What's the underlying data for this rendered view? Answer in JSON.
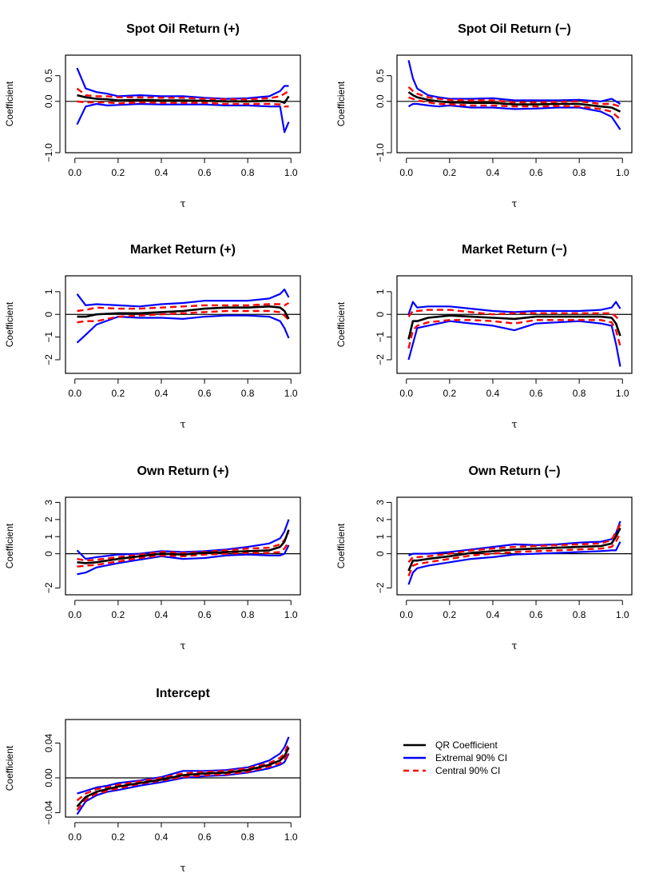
{
  "legend": {
    "entries": [
      {
        "label": "QR Coefficient",
        "color": "#000000",
        "style": "solid"
      },
      {
        "label": "Extremal 90% CI",
        "color": "#0000FF",
        "style": "solid"
      },
      {
        "label": "Central 90% CI",
        "color": "#FF0000",
        "style": "dashed"
      }
    ]
  },
  "chart_data": [
    {
      "type": "line",
      "title": "Spot Oil Return (+)",
      "xlabel": "τ",
      "ylabel": "Coefficient",
      "xlim": [
        0,
        1
      ],
      "ylim": [
        -1.0,
        0.9
      ],
      "xticks": [
        0.0,
        0.2,
        0.4,
        0.6,
        0.8,
        1.0
      ],
      "xtick_labels": [
        "0.0",
        "0.2",
        "0.4",
        "0.6",
        "0.8",
        "1.0"
      ],
      "yticks": [
        -1.0,
        0.0,
        0.5
      ],
      "ytick_labels": [
        "−1.0",
        "0.0",
        "0.5"
      ],
      "hline": 0,
      "x": [
        0.01,
        0.05,
        0.1,
        0.15,
        0.2,
        0.3,
        0.4,
        0.5,
        0.6,
        0.7,
        0.8,
        0.9,
        0.95,
        0.97,
        0.99
      ],
      "series": [
        {
          "name": "QR Coefficient",
          "values": [
            0.12,
            0.08,
            0.05,
            0.04,
            0.02,
            0.03,
            0.02,
            0.02,
            0.01,
            0.0,
            0.0,
            0.01,
            0.0,
            -0.03,
            0.1
          ]
        },
        {
          "name": "Extremal 90% CI upper",
          "values": [
            0.65,
            0.25,
            0.18,
            0.15,
            0.1,
            0.12,
            0.1,
            0.1,
            0.07,
            0.05,
            0.06,
            0.1,
            0.2,
            0.3,
            0.3
          ]
        },
        {
          "name": "Extremal 90% CI lower",
          "values": [
            -0.45,
            -0.1,
            -0.05,
            -0.08,
            -0.07,
            -0.05,
            -0.06,
            -0.06,
            -0.06,
            -0.08,
            -0.08,
            -0.1,
            -0.1,
            -0.6,
            -0.4
          ]
        },
        {
          "name": "Central 90% CI upper",
          "values": [
            0.25,
            0.12,
            0.1,
            0.1,
            0.08,
            0.08,
            0.07,
            0.07,
            0.05,
            0.04,
            0.04,
            0.06,
            0.1,
            0.15,
            0.2
          ]
        },
        {
          "name": "Central 90% CI lower",
          "values": [
            0.0,
            -0.02,
            -0.02,
            -0.02,
            -0.04,
            -0.02,
            -0.03,
            -0.03,
            -0.03,
            -0.05,
            -0.05,
            -0.05,
            -0.06,
            -0.1,
            -0.1
          ]
        }
      ]
    },
    {
      "type": "line",
      "title": "Spot Oil Return (−)",
      "xlabel": "τ",
      "ylabel": "Coefficient",
      "xlim": [
        0,
        1
      ],
      "ylim": [
        -1.0,
        0.9
      ],
      "xticks": [
        0.0,
        0.2,
        0.4,
        0.6,
        0.8,
        1.0
      ],
      "xtick_labels": [
        "0.0",
        "0.2",
        "0.4",
        "0.6",
        "0.8",
        "1.0"
      ],
      "yticks": [
        -1.0,
        0.0,
        0.5
      ],
      "ytick_labels": [
        "−1.0",
        "0.0",
        "0.5"
      ],
      "hline": 0,
      "x": [
        0.01,
        0.03,
        0.05,
        0.1,
        0.15,
        0.2,
        0.3,
        0.4,
        0.5,
        0.6,
        0.7,
        0.8,
        0.9,
        0.95,
        0.99
      ],
      "series": [
        {
          "name": "QR Coefficient",
          "values": [
            0.18,
            0.12,
            0.08,
            0.03,
            0.0,
            -0.02,
            -0.03,
            -0.03,
            -0.06,
            -0.06,
            -0.05,
            -0.05,
            -0.1,
            -0.12,
            -0.2
          ]
        },
        {
          "name": "Extremal 90% CI upper",
          "values": [
            0.8,
            0.45,
            0.25,
            0.12,
            0.08,
            0.05,
            0.05,
            0.06,
            0.02,
            0.02,
            0.02,
            0.03,
            0.0,
            0.05,
            -0.05
          ]
        },
        {
          "name": "Extremal 90% CI lower",
          "values": [
            -0.1,
            -0.05,
            -0.05,
            -0.08,
            -0.1,
            -0.08,
            -0.12,
            -0.12,
            -0.15,
            -0.14,
            -0.12,
            -0.12,
            -0.2,
            -0.3,
            -0.55
          ]
        },
        {
          "name": "Central 90% CI upper",
          "values": [
            0.28,
            0.2,
            0.15,
            0.08,
            0.05,
            0.03,
            0.02,
            0.02,
            -0.02,
            -0.02,
            -0.01,
            0.0,
            -0.05,
            -0.05,
            -0.1
          ]
        },
        {
          "name": "Central 90% CI lower",
          "values": [
            0.08,
            0.05,
            0.02,
            -0.02,
            -0.05,
            -0.06,
            -0.08,
            -0.08,
            -0.1,
            -0.1,
            -0.09,
            -0.1,
            -0.15,
            -0.2,
            -0.35
          ]
        }
      ]
    },
    {
      "type": "line",
      "title": "Market Return (+)",
      "xlabel": "τ",
      "ylabel": "Coefficient",
      "xlim": [
        0,
        1
      ],
      "ylim": [
        -2.6,
        1.7
      ],
      "xticks": [
        0.0,
        0.2,
        0.4,
        0.6,
        0.8,
        1.0
      ],
      "xtick_labels": [
        "0.0",
        "0.2",
        "0.4",
        "0.6",
        "0.8",
        "1.0"
      ],
      "yticks": [
        -2,
        -1,
        0,
        1
      ],
      "ytick_labels": [
        "−2",
        "−1",
        "0",
        "1"
      ],
      "hline": 0,
      "x": [
        0.01,
        0.05,
        0.1,
        0.2,
        0.3,
        0.4,
        0.5,
        0.6,
        0.7,
        0.8,
        0.9,
        0.95,
        0.97,
        0.99
      ],
      "series": [
        {
          "name": "QR Coefficient",
          "values": [
            -0.1,
            -0.1,
            0.0,
            0.05,
            0.05,
            0.1,
            0.15,
            0.25,
            0.3,
            0.3,
            0.35,
            0.3,
            0.15,
            -0.2
          ]
        },
        {
          "name": "Extremal 90% CI upper",
          "values": [
            0.9,
            0.4,
            0.45,
            0.4,
            0.35,
            0.45,
            0.5,
            0.6,
            0.6,
            0.6,
            0.7,
            0.9,
            1.1,
            0.75
          ]
        },
        {
          "name": "Extremal 90% CI lower",
          "values": [
            -1.25,
            -0.9,
            -0.45,
            -0.1,
            -0.15,
            -0.15,
            -0.2,
            -0.1,
            -0.05,
            -0.05,
            -0.1,
            -0.3,
            -0.6,
            -1.05
          ]
        },
        {
          "name": "Central 90% CI upper",
          "values": [
            0.15,
            0.2,
            0.3,
            0.25,
            0.25,
            0.3,
            0.35,
            0.4,
            0.4,
            0.4,
            0.45,
            0.45,
            0.4,
            0.5
          ]
        },
        {
          "name": "Central 90% CI lower",
          "values": [
            -0.35,
            -0.3,
            -0.3,
            -0.1,
            -0.05,
            0.0,
            0.05,
            0.1,
            0.15,
            0.15,
            0.15,
            0.1,
            -0.05,
            -0.25
          ]
        }
      ]
    },
    {
      "type": "line",
      "title": "Market Return (−)",
      "xlabel": "τ",
      "ylabel": "Coefficient",
      "xlim": [
        0,
        1
      ],
      "ylim": [
        -2.6,
        1.7
      ],
      "xticks": [
        0.0,
        0.2,
        0.4,
        0.6,
        0.8,
        1.0
      ],
      "xtick_labels": [
        "0.0",
        "0.2",
        "0.4",
        "0.6",
        "0.8",
        "1.0"
      ],
      "yticks": [
        -2,
        -1,
        0,
        1
      ],
      "ytick_labels": [
        "−2",
        "−1",
        "0",
        "1"
      ],
      "hline": 0,
      "x": [
        0.01,
        0.03,
        0.05,
        0.1,
        0.2,
        0.3,
        0.4,
        0.5,
        0.6,
        0.7,
        0.8,
        0.9,
        0.95,
        0.97,
        0.99
      ],
      "series": [
        {
          "name": "QR Coefficient",
          "values": [
            -1.1,
            -0.3,
            -0.3,
            -0.15,
            -0.05,
            -0.1,
            -0.15,
            -0.2,
            -0.1,
            -0.1,
            -0.1,
            -0.1,
            -0.15,
            -0.4,
            -0.95
          ]
        },
        {
          "name": "Extremal 90% CI upper",
          "values": [
            0.0,
            0.55,
            0.3,
            0.35,
            0.35,
            0.25,
            0.15,
            0.1,
            0.15,
            0.15,
            0.15,
            0.2,
            0.3,
            0.55,
            0.25
          ]
        },
        {
          "name": "Extremal 90% CI lower",
          "values": [
            -2.0,
            -1.3,
            -0.6,
            -0.5,
            -0.3,
            -0.4,
            -0.5,
            -0.7,
            -0.4,
            -0.35,
            -0.3,
            -0.4,
            -0.5,
            -1.3,
            -2.3
          ]
        },
        {
          "name": "Central 90% CI upper",
          "values": [
            -0.1,
            0.15,
            0.15,
            0.2,
            0.2,
            0.1,
            0.0,
            0.05,
            0.05,
            0.05,
            0.05,
            0.05,
            0.05,
            -0.1,
            -0.3
          ]
        },
        {
          "name": "Central 90% CI lower",
          "values": [
            -1.5,
            -0.7,
            -0.5,
            -0.35,
            -0.25,
            -0.25,
            -0.3,
            -0.4,
            -0.25,
            -0.25,
            -0.25,
            -0.25,
            -0.35,
            -0.7,
            -1.4
          ]
        }
      ]
    },
    {
      "type": "line",
      "title": "Own Return (+)",
      "xlabel": "τ",
      "ylabel": "Coefficient",
      "xlim": [
        0,
        1
      ],
      "ylim": [
        -2.4,
        3.3
      ],
      "xticks": [
        0.0,
        0.2,
        0.4,
        0.6,
        0.8,
        1.0
      ],
      "xtick_labels": [
        "0.0",
        "0.2",
        "0.4",
        "0.6",
        "0.8",
        "1.0"
      ],
      "yticks": [
        -2,
        0,
        1,
        2,
        3
      ],
      "ytick_labels": [
        "−2",
        "0",
        "1",
        "2",
        "3"
      ],
      "hline": 0,
      "x": [
        0.01,
        0.05,
        0.1,
        0.2,
        0.3,
        0.4,
        0.5,
        0.6,
        0.7,
        0.8,
        0.9,
        0.95,
        0.97,
        0.99
      ],
      "series": [
        {
          "name": "QR Coefficient",
          "values": [
            -0.5,
            -0.55,
            -0.5,
            -0.3,
            -0.15,
            0.0,
            -0.05,
            0.05,
            0.1,
            0.15,
            0.2,
            0.4,
            0.7,
            1.4
          ]
        },
        {
          "name": "Extremal 90% CI upper",
          "values": [
            0.2,
            -0.3,
            -0.2,
            -0.05,
            0.0,
            0.15,
            0.1,
            0.15,
            0.25,
            0.4,
            0.6,
            0.9,
            1.3,
            2.0
          ]
        },
        {
          "name": "Extremal 90% CI lower",
          "values": [
            -1.2,
            -1.1,
            -0.8,
            -0.55,
            -0.35,
            -0.15,
            -0.3,
            -0.25,
            -0.1,
            -0.05,
            -0.1,
            -0.1,
            0.0,
            0.5
          ]
        },
        {
          "name": "Central 90% CI upper",
          "values": [
            -0.3,
            -0.4,
            -0.35,
            -0.2,
            -0.05,
            0.1,
            0.05,
            0.1,
            0.2,
            0.3,
            0.35,
            0.55,
            0.8,
            1.2
          ]
        },
        {
          "name": "Central 90% CI lower",
          "values": [
            -0.75,
            -0.7,
            -0.65,
            -0.45,
            -0.25,
            -0.1,
            -0.15,
            -0.05,
            0.0,
            0.05,
            0.05,
            0.1,
            0.3,
            0.7
          ]
        }
      ]
    },
    {
      "type": "line",
      "title": "Own Return (−)",
      "xlabel": "τ",
      "ylabel": "Coefficient",
      "xlim": [
        0,
        1
      ],
      "ylim": [
        -2.4,
        3.3
      ],
      "xticks": [
        0.0,
        0.2,
        0.4,
        0.6,
        0.8,
        1.0
      ],
      "xtick_labels": [
        "0.0",
        "0.2",
        "0.4",
        "0.6",
        "0.8",
        "1.0"
      ],
      "yticks": [
        -2,
        0,
        1,
        2,
        3
      ],
      "ytick_labels": [
        "−2",
        "0",
        "1",
        "2",
        "3"
      ],
      "hline": 0,
      "x": [
        0.01,
        0.03,
        0.05,
        0.1,
        0.2,
        0.3,
        0.4,
        0.5,
        0.6,
        0.7,
        0.8,
        0.9,
        0.95,
        0.97,
        0.99
      ],
      "series": [
        {
          "name": "QR Coefficient",
          "values": [
            -1.0,
            -0.4,
            -0.4,
            -0.3,
            -0.15,
            0.05,
            0.15,
            0.25,
            0.3,
            0.35,
            0.4,
            0.45,
            0.6,
            1.0,
            1.5
          ]
        },
        {
          "name": "Extremal 90% CI upper",
          "values": [
            -0.1,
            0.0,
            0.0,
            0.0,
            0.1,
            0.25,
            0.4,
            0.55,
            0.5,
            0.55,
            0.65,
            0.7,
            0.85,
            1.2,
            1.9
          ]
        },
        {
          "name": "Extremal 90% CI lower",
          "values": [
            -1.8,
            -1.1,
            -0.85,
            -0.7,
            -0.5,
            -0.3,
            -0.2,
            -0.05,
            0.0,
            0.05,
            0.1,
            0.15,
            0.2,
            0.2,
            0.7
          ]
        },
        {
          "name": "Central 90% CI upper",
          "values": [
            -0.5,
            -0.2,
            -0.2,
            -0.15,
            0.0,
            0.2,
            0.3,
            0.4,
            0.45,
            0.5,
            0.55,
            0.6,
            0.8,
            1.3,
            1.7
          ]
        },
        {
          "name": "Central 90% CI lower",
          "values": [
            -1.3,
            -0.7,
            -0.6,
            -0.5,
            -0.3,
            -0.1,
            0.0,
            0.1,
            0.15,
            0.2,
            0.25,
            0.3,
            0.4,
            0.7,
            1.2
          ]
        }
      ]
    },
    {
      "type": "line",
      "title": "Intercept",
      "xlabel": "τ",
      "ylabel": "Coefficient",
      "xlim": [
        0,
        1
      ],
      "ylim": [
        -0.045,
        0.067
      ],
      "xticks": [
        0.0,
        0.2,
        0.4,
        0.6,
        0.8,
        1.0
      ],
      "xtick_labels": [
        "0.0",
        "0.2",
        "0.4",
        "0.6",
        "0.8",
        "1.0"
      ],
      "yticks": [
        -0.04,
        0.0,
        0.04
      ],
      "ytick_labels": [
        "−0.04",
        "0.00",
        "0.04"
      ],
      "hline": 0,
      "x": [
        0.01,
        0.05,
        0.1,
        0.15,
        0.2,
        0.3,
        0.4,
        0.5,
        0.6,
        0.7,
        0.8,
        0.9,
        0.95,
        0.97,
        0.99
      ],
      "series": [
        {
          "name": "QR Coefficient",
          "values": [
            -0.033,
            -0.022,
            -0.016,
            -0.013,
            -0.01,
            -0.006,
            -0.002,
            0.003,
            0.005,
            0.006,
            0.009,
            0.015,
            0.02,
            0.025,
            0.035
          ]
        },
        {
          "name": "Extremal 90% CI upper",
          "values": [
            -0.018,
            -0.015,
            -0.011,
            -0.009,
            -0.006,
            -0.003,
            0.001,
            0.008,
            0.008,
            0.009,
            0.012,
            0.02,
            0.028,
            0.035,
            0.047
          ]
        },
        {
          "name": "Extremal 90% CI lower",
          "values": [
            -0.042,
            -0.027,
            -0.02,
            -0.016,
            -0.014,
            -0.009,
            -0.005,
            0.0,
            0.002,
            0.003,
            0.006,
            0.011,
            0.015,
            0.018,
            0.028
          ]
        },
        {
          "name": "Central 90% CI upper",
          "values": [
            -0.026,
            -0.018,
            -0.013,
            -0.011,
            -0.008,
            -0.004,
            0.0,
            0.005,
            0.007,
            0.008,
            0.011,
            0.017,
            0.023,
            0.028,
            0.04
          ]
        },
        {
          "name": "Central 90% CI lower",
          "values": [
            -0.037,
            -0.025,
            -0.018,
            -0.015,
            -0.012,
            -0.007,
            -0.003,
            0.001,
            0.003,
            0.004,
            0.007,
            0.013,
            0.017,
            0.021,
            0.03
          ]
        }
      ]
    }
  ]
}
